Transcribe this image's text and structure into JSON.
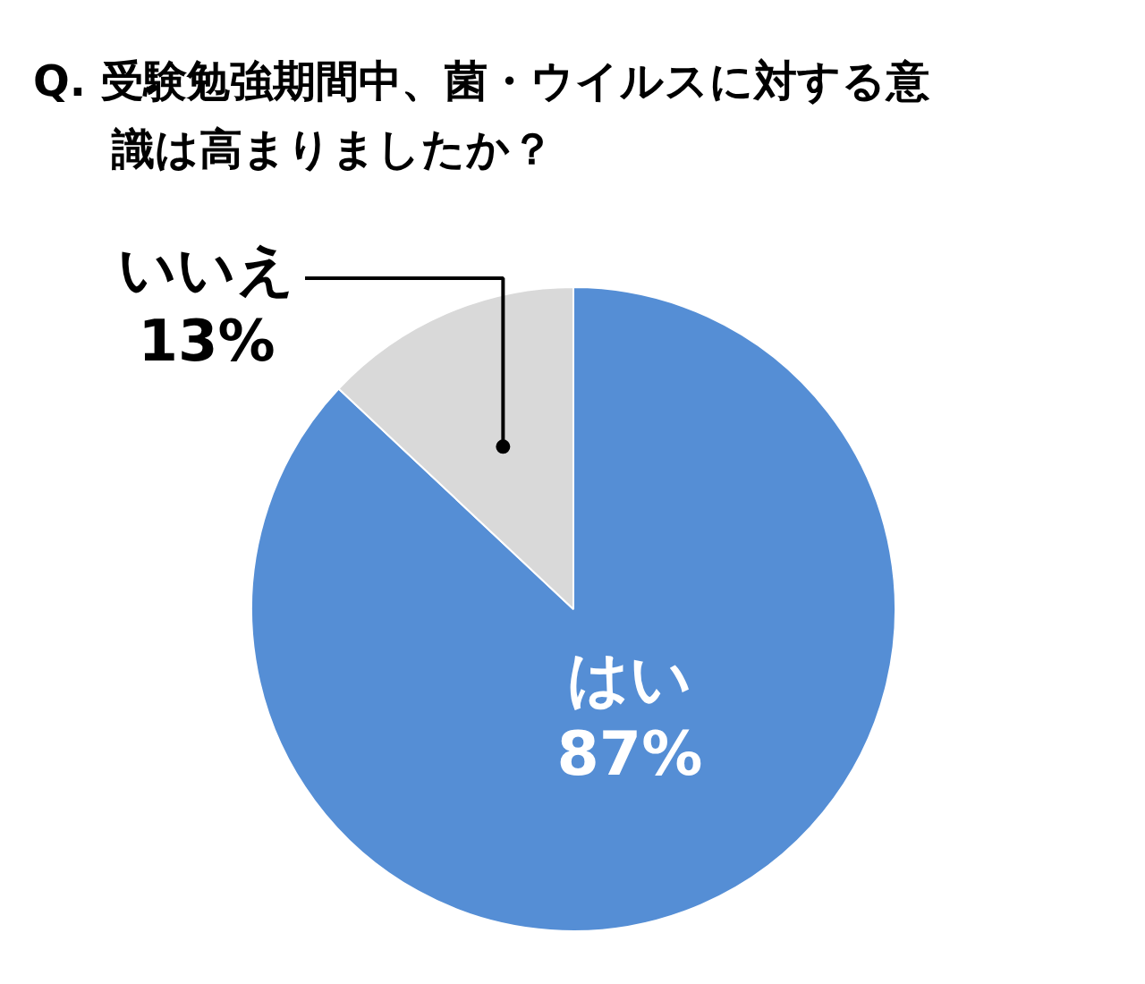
{
  "chart_data": {
    "type": "pie",
    "title": "Q. 受験勉強期間中、菌・ウイルスに対する意識は高まりましたか？",
    "categories": [
      "はい",
      "いいえ"
    ],
    "values": [
      87,
      13
    ],
    "colors": [
      "#558ed5",
      "#d9d9d9"
    ],
    "value_labels": [
      "87%",
      "13%"
    ]
  }
}
